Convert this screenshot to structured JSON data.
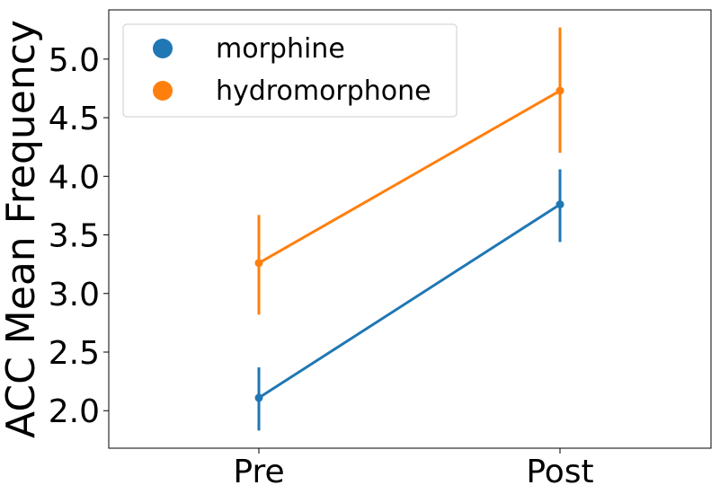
{
  "chart_data": {
    "type": "line",
    "title": "",
    "xlabel": "",
    "ylabel": "ACC Mean Frequency",
    "categories": [
      "Pre",
      "Post"
    ],
    "ylim": [
      1.68,
      5.42
    ],
    "yticks": [
      2.0,
      2.5,
      3.0,
      3.5,
      4.0,
      4.5,
      5.0
    ],
    "ytick_labels": [
      "2.0",
      "2.5",
      "3.0",
      "3.5",
      "4.0",
      "4.5",
      "5.0"
    ],
    "grid": false,
    "legend": "top-left",
    "series": [
      {
        "name": "morphine",
        "color": "#1f77b4",
        "values": [
          2.11,
          3.76
        ],
        "err_low": [
          1.83,
          3.44
        ],
        "err_high": [
          2.37,
          4.06
        ]
      },
      {
        "name": "hydromorphone",
        "color": "#ff7f0e",
        "values": [
          3.26,
          4.73
        ],
        "err_low": [
          2.82,
          4.2
        ],
        "err_high": [
          3.67,
          5.27
        ]
      }
    ]
  }
}
